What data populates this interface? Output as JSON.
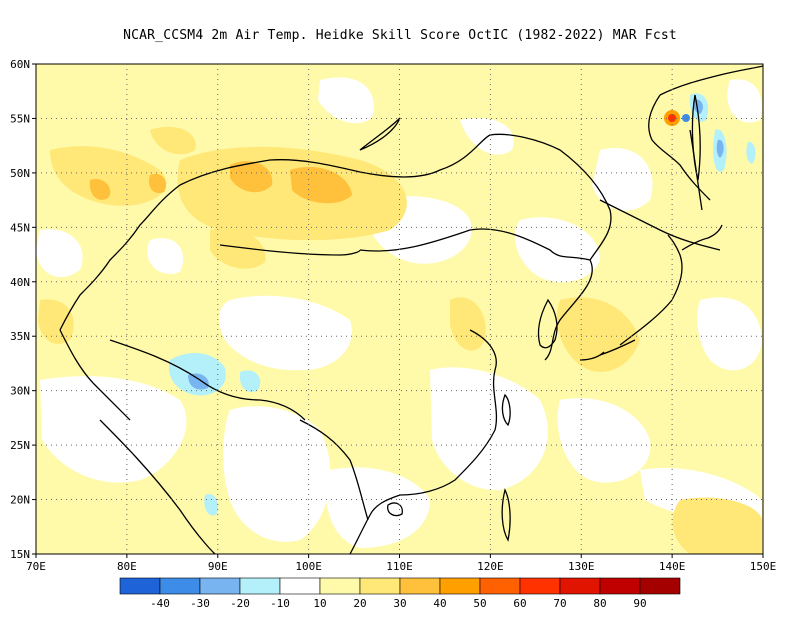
{
  "title": "NCAR_CCSM4  2m Air Temp. Heidke Skill Score OctIC (1982-2022) MAR Fcst",
  "axes": {
    "lon_labels": [
      "70E",
      "80E",
      "90E",
      "100E",
      "110E",
      "120E",
      "130E",
      "140E",
      "150E"
    ],
    "lat_labels": [
      "15N",
      "20N",
      "25N",
      "30N",
      "35N",
      "40N",
      "45N",
      "50N",
      "55N",
      "60N"
    ]
  },
  "colorbar": {
    "colors": [
      "#1e64d8",
      "#3c8ce8",
      "#78b4f0",
      "#b4f0fa",
      "#ffffff",
      "#fffaaa",
      "#ffe878",
      "#ffc03c",
      "#ffa000",
      "#ff6000",
      "#ff3200",
      "#e11400",
      "#c00000",
      "#a50000"
    ],
    "labels": [
      "-40",
      "-30",
      "-20",
      "-10",
      "10",
      "20",
      "30",
      "40",
      "50",
      "60",
      "70",
      "80",
      "90"
    ]
  },
  "map_colors": {
    "white": "#ffffff",
    "pale_yellow": "#fffaaa",
    "yellow": "#ffe878",
    "orange": "#ffc03c",
    "light_blue": "#b4f0fa",
    "blue": "#78b4f0",
    "mid_blue": "#3c8ce8",
    "red": "#ff3200"
  }
}
